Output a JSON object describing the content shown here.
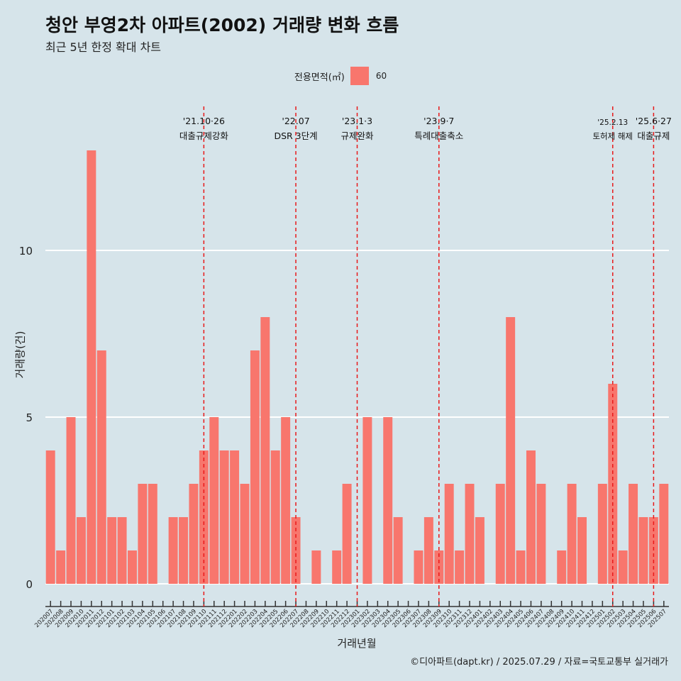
{
  "chart_data": {
    "type": "bar",
    "title": "청안 부영2차 아파트(2002) 거래량 변화 흐름",
    "subtitle": "최근 5년 한정 확대 차트",
    "xlabel": "거래년월",
    "ylabel": "거래량(건)",
    "ylim": [
      0,
      14
    ],
    "yticks": [
      0,
      5,
      10
    ],
    "grid": true,
    "legend": {
      "title": "전용면적(㎡)",
      "placement": "top",
      "entries": [
        "60"
      ]
    },
    "bar_color": "#f8766d",
    "categories": [
      "202007",
      "202008",
      "202009",
      "202010",
      "202011",
      "202012",
      "202101",
      "202102",
      "202103",
      "202104",
      "202105",
      "202106",
      "202107",
      "202108",
      "202109",
      "202110",
      "202111",
      "202112",
      "202201",
      "202202",
      "202203",
      "202204",
      "202205",
      "202206",
      "202207",
      "202208",
      "202209",
      "202210",
      "202211",
      "202212",
      "202301",
      "202302",
      "202303",
      "202304",
      "202305",
      "202306",
      "202307",
      "202308",
      "202309",
      "202310",
      "202311",
      "202312",
      "202401",
      "202402",
      "202403",
      "202404",
      "202405",
      "202406",
      "202407",
      "202408",
      "202409",
      "202410",
      "202411",
      "202412",
      "202501",
      "202502",
      "202503",
      "202504",
      "202505",
      "202506",
      "202507"
    ],
    "series": [
      {
        "name": "60",
        "values": [
          4,
          1,
          5,
          2,
          13,
          7,
          2,
          2,
          1,
          3,
          3,
          0,
          2,
          2,
          3,
          4,
          5,
          4,
          4,
          3,
          7,
          8,
          4,
          5,
          2,
          0,
          1,
          0,
          1,
          3,
          0,
          5,
          0,
          5,
          2,
          0,
          1,
          2,
          1,
          3,
          1,
          3,
          2,
          0,
          3,
          8,
          1,
          4,
          3,
          0,
          1,
          3,
          2,
          0,
          3,
          6,
          1,
          3,
          2,
          2,
          3
        ]
      }
    ],
    "annotations": [
      {
        "category": "202110",
        "line1": "'21.10·26",
        "line2": "대출규제강화"
      },
      {
        "category": "202207",
        "line1": "'22.07",
        "line2": "DSR 3단계"
      },
      {
        "category": "202301",
        "line1": "'23.1·3",
        "line2": "규제완화"
      },
      {
        "category": "202309",
        "line1": "'23.9·7",
        "line2": "특례대출축소"
      },
      {
        "category": "202502",
        "line1": "'25.2.13",
        "line2": "토허제 해제"
      },
      {
        "category": "202506",
        "line1": "'25.6·27",
        "line2": "대출규제"
      }
    ]
  },
  "caption": "©디아파트(dapt.kr) / 2025.07.29 / 자료=국토교통부 실거래가"
}
